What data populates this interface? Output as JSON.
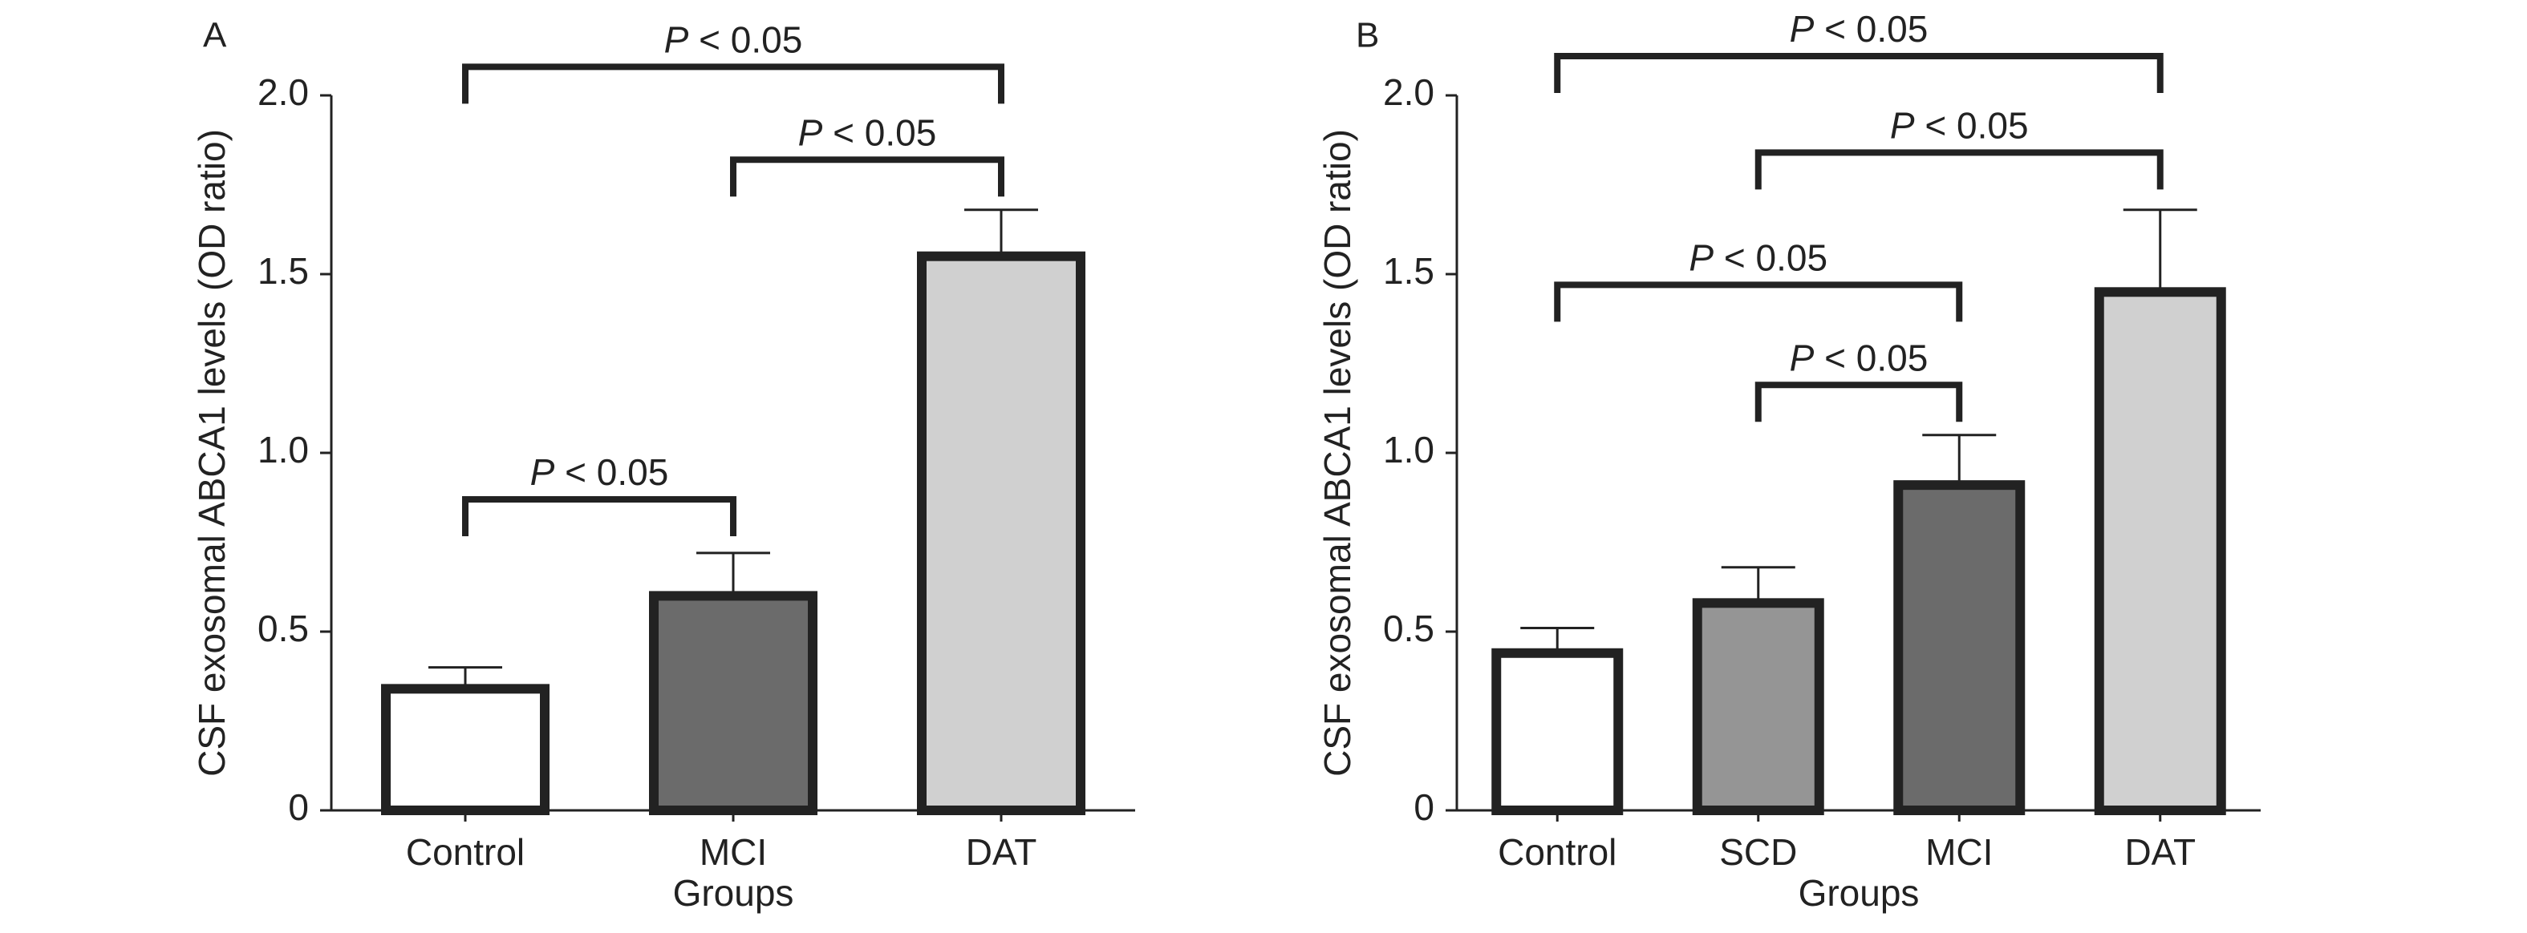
{
  "chart_data": [
    {
      "panel_label": "A",
      "type": "bar",
      "categories": [
        "Control",
        "MCI",
        "DAT"
      ],
      "values": [
        0.34,
        0.6,
        1.55
      ],
      "errors": [
        0.06,
        0.12,
        0.13
      ],
      "bar_colors": [
        "#ffffff",
        "#6b6b6b",
        "#d0d0d0"
      ],
      "xlabel": "Groups",
      "ylabel": "CSF exosomal ABCA1 levels (OD ratio)",
      "ylim": [
        0,
        2.0
      ],
      "yticks": [
        0,
        0.5,
        1.0,
        1.5,
        2.0
      ],
      "ytick_labels": [
        "0",
        "0.5",
        "1.0",
        "1.5",
        "2.0"
      ],
      "significance": [
        {
          "from": "Control",
          "to": "DAT",
          "label_prefix": "P",
          "label_suffix": " < 0.05",
          "y": 2.08
        },
        {
          "from": "MCI",
          "to": "DAT",
          "label_prefix": "P",
          "label_suffix": " < 0.05",
          "y": 1.82
        },
        {
          "from": "Control",
          "to": "MCI",
          "label_prefix": "P",
          "label_suffix": " < 0.05",
          "y": 0.87
        }
      ]
    },
    {
      "panel_label": "B",
      "type": "bar",
      "categories": [
        "Control",
        "SCD",
        "MCI",
        "DAT"
      ],
      "values": [
        0.44,
        0.58,
        0.91,
        1.45
      ],
      "errors": [
        0.07,
        0.1,
        0.14,
        0.23
      ],
      "bar_colors": [
        "#ffffff",
        "#959595",
        "#6b6b6b",
        "#d0d0d0"
      ],
      "xlabel": "Groups",
      "ylabel": "CSF exosomal ABCA1 levels (OD ratio)",
      "ylim": [
        0,
        2.0
      ],
      "yticks": [
        0,
        0.5,
        1.0,
        1.5,
        2.0
      ],
      "ytick_labels": [
        "0",
        "0.5",
        "1.0",
        "1.5",
        "2.0"
      ],
      "significance": [
        {
          "from": "Control",
          "to": "DAT",
          "label_prefix": "P",
          "label_suffix": " < 0.05",
          "y": 2.11
        },
        {
          "from": "SCD",
          "to": "DAT",
          "label_prefix": "P",
          "label_suffix": " < 0.05",
          "y": 1.84
        },
        {
          "from": "Control",
          "to": "MCI",
          "label_prefix": "P",
          "label_suffix": " < 0.05",
          "y": 1.47
        },
        {
          "from": "SCD",
          "to": "MCI",
          "label_prefix": "P",
          "label_suffix": " < 0.05",
          "y": 1.19
        }
      ]
    }
  ]
}
